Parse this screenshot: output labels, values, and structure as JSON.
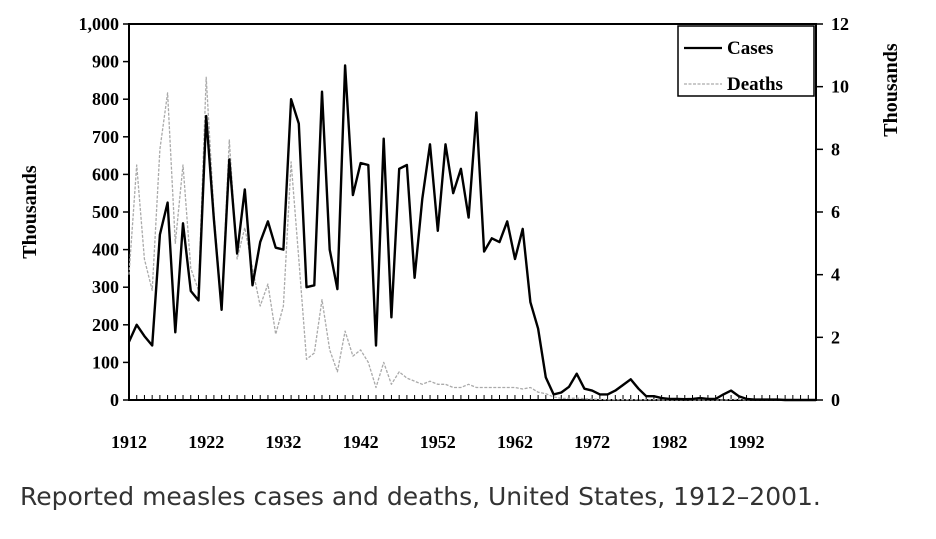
{
  "caption": "Reported measles cases and deaths, United States, 1912–2001.",
  "chart_data": {
    "type": "line",
    "ylabel_left": "Thousands",
    "ylabel_right": "Thousands",
    "y_left_ticks": [
      "0",
      "100",
      "200",
      "300",
      "400",
      "500",
      "600",
      "700",
      "800",
      "900",
      "1,000"
    ],
    "y_right_ticks": [
      "0",
      "2",
      "4",
      "6",
      "8",
      "10",
      "12"
    ],
    "x_ticks": [
      "1912",
      "1922",
      "1932",
      "1942",
      "1952",
      "1962",
      "1972",
      "1982",
      "1992"
    ],
    "ylim_left": [
      0,
      1000
    ],
    "ylim_right": [
      0,
      12
    ],
    "xlim": [
      1912,
      2001
    ],
    "legend_position": "top-right",
    "series": [
      {
        "name": "Cases",
        "axis": "left",
        "color": "#000000",
        "x": [
          1912,
          1913,
          1914,
          1915,
          1916,
          1917,
          1918,
          1919,
          1920,
          1921,
          1922,
          1923,
          1924,
          1925,
          1926,
          1927,
          1928,
          1929,
          1930,
          1931,
          1932,
          1933,
          1934,
          1935,
          1936,
          1937,
          1938,
          1939,
          1940,
          1941,
          1942,
          1943,
          1944,
          1945,
          1946,
          1947,
          1948,
          1949,
          1950,
          1951,
          1952,
          1953,
          1954,
          1955,
          1956,
          1957,
          1958,
          1959,
          1960,
          1961,
          1962,
          1963,
          1964,
          1965,
          1966,
          1967,
          1968,
          1969,
          1970,
          1971,
          1972,
          1973,
          1974,
          1975,
          1976,
          1977,
          1978,
          1979,
          1980,
          1981,
          1982,
          1983,
          1984,
          1985,
          1986,
          1987,
          1988,
          1989,
          1990,
          1991,
          1992,
          1993,
          1994,
          1995,
          1996,
          1997,
          1998,
          1999,
          2000,
          2001
        ],
        "values": [
          155,
          200,
          170,
          145,
          440,
          525,
          180,
          470,
          290,
          265,
          755,
          480,
          240,
          640,
          390,
          560,
          305,
          420,
          475,
          405,
          400,
          800,
          735,
          300,
          305,
          820,
          400,
          295,
          890,
          545,
          630,
          625,
          145,
          695,
          220,
          615,
          625,
          325,
          535,
          680,
          450,
          680,
          550,
          615,
          485,
          765,
          395,
          430,
          420,
          475,
          375,
          455,
          260,
          190,
          60,
          15,
          20,
          35,
          70,
          30,
          25,
          15,
          15,
          25,
          40,
          55,
          30,
          10,
          10,
          5,
          3,
          3,
          2,
          3,
          5,
          3,
          3,
          15,
          25,
          10,
          3,
          1,
          1,
          1,
          1,
          0,
          0,
          0,
          0,
          0
        ]
      },
      {
        "name": "Deaths",
        "axis": "right",
        "color": "#aaaaaa",
        "x": [
          1912,
          1913,
          1914,
          1915,
          1916,
          1917,
          1918,
          1919,
          1920,
          1921,
          1922,
          1923,
          1924,
          1925,
          1926,
          1927,
          1928,
          1929,
          1930,
          1931,
          1932,
          1933,
          1934,
          1935,
          1936,
          1937,
          1938,
          1939,
          1940,
          1941,
          1942,
          1943,
          1944,
          1945,
          1946,
          1947,
          1948,
          1949,
          1950,
          1951,
          1952,
          1953,
          1954,
          1955,
          1956,
          1957,
          1958,
          1959,
          1960,
          1961,
          1962,
          1963,
          1964,
          1965,
          1966,
          1967,
          1968,
          1969,
          1970,
          1971,
          1972,
          1973,
          1974,
          1975,
          1976,
          1977,
          1978,
          1979,
          1980,
          1981,
          1982,
          1983,
          1984,
          1985,
          1986,
          1987,
          1988,
          1989,
          1990,
          1991,
          1992,
          1993,
          1994,
          1995,
          1996,
          1997,
          1998,
          1999,
          2000,
          2001
        ],
        "values": [
          4.0,
          7.5,
          4.5,
          3.5,
          8.0,
          9.8,
          5.0,
          7.5,
          4.2,
          3.5,
          10.3,
          6.0,
          3.0,
          8.3,
          4.5,
          5.5,
          4.2,
          3.0,
          3.7,
          2.1,
          3.0,
          7.6,
          4.5,
          1.3,
          1.5,
          3.2,
          1.6,
          0.9,
          2.2,
          1.4,
          1.6,
          1.2,
          0.4,
          1.2,
          0.5,
          0.9,
          0.7,
          0.6,
          0.5,
          0.6,
          0.5,
          0.5,
          0.4,
          0.4,
          0.5,
          0.4,
          0.4,
          0.4,
          0.4,
          0.4,
          0.4,
          0.35,
          0.4,
          0.25,
          0.2,
          0.1,
          0.05,
          0.05,
          0.06,
          0.04,
          0.03,
          0.02,
          0.01,
          0.01,
          0.01,
          0.01,
          0.01,
          0.01,
          0.01,
          0.0,
          0.0,
          0.0,
          0.0,
          0.0,
          0.0,
          0.0,
          0.0,
          0.0,
          0.02,
          0.02,
          0.0,
          0.0,
          0.0,
          0.0,
          0.0,
          0.0,
          0.0,
          0.0,
          0.0,
          0.0
        ]
      }
    ]
  }
}
